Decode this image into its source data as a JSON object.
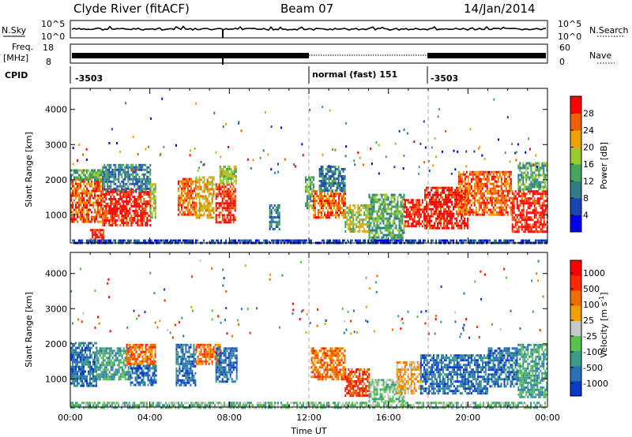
{
  "header": {
    "station": "Clyde River (fitACF)",
    "beam": "Beam 07",
    "date": "14/Jan/2014"
  },
  "panels": {
    "nsky": {
      "label": "N.Sky",
      "right_label": "N.Search",
      "ticks": [
        "10^5",
        "10^0"
      ],
      "right_ticks": [
        "10^5",
        "10^0"
      ]
    },
    "freq": {
      "label_line1": "Freq.",
      "label_line2": "[MHz]",
      "ticks": [
        "18",
        "8"
      ],
      "right_label": "Nave",
      "right_ticks": [
        "60",
        "0"
      ]
    },
    "cpid": {
      "label": "CPID",
      "segments": [
        {
          "start_ut": 0.0,
          "text": "-3503"
        },
        {
          "start_ut": 12.0,
          "text": "normal (fast) 151"
        },
        {
          "start_ut": 18.0,
          "text": "-3503"
        }
      ]
    }
  },
  "chart_data": [
    {
      "type": "heatmap",
      "name": "power",
      "ylabel": "Slant Range [km]",
      "xlabel": "Time UT",
      "xlim": [
        0,
        24
      ],
      "ylim": [
        200,
        4600
      ],
      "xticks": [
        "00:00",
        "04:00",
        "08:00",
        "12:00",
        "16:00",
        "20:00",
        "00:00"
      ],
      "yticks": [
        1000,
        2000,
        3000,
        4000
      ],
      "colorbar": {
        "label": "Power [dB]",
        "ticks": [
          "28",
          "24",
          "20",
          "16",
          "12",
          "8",
          "4"
        ],
        "colors": [
          "#0000ee",
          "#1844b4",
          "#2f7c8a",
          "#46a45c",
          "#9acb2c",
          "#f0a000",
          "#f06000",
          "#ff0000"
        ]
      },
      "dashed_lines_ut": [
        12,
        18
      ],
      "regions": [
        {
          "t": [
            0.0,
            1.6
          ],
          "r": [
            800,
            2050
          ],
          "level": 6
        },
        {
          "t": [
            0.0,
            1.6
          ],
          "r": [
            2000,
            2300
          ],
          "level": 3
        },
        {
          "t": [
            1.6,
            4.0
          ],
          "r": [
            700,
            1750
          ],
          "level": 7
        },
        {
          "t": [
            1.6,
            4.0
          ],
          "r": [
            1700,
            2450
          ],
          "level": 2
        },
        {
          "t": [
            1.0,
            1.7
          ],
          "r": [
            250,
            600
          ],
          "level": 7
        },
        {
          "t": [
            4.0,
            4.3
          ],
          "r": [
            900,
            1900
          ],
          "level": 4
        },
        {
          "t": [
            5.4,
            6.3
          ],
          "r": [
            1000,
            2050
          ],
          "level": 6
        },
        {
          "t": [
            6.3,
            7.2
          ],
          "r": [
            900,
            2100
          ],
          "level": 5
        },
        {
          "t": [
            7.3,
            8.3
          ],
          "r": [
            800,
            1900
          ],
          "level": 7
        },
        {
          "t": [
            7.5,
            8.3
          ],
          "r": [
            1900,
            2400
          ],
          "level": 4
        },
        {
          "t": [
            10.0,
            10.5
          ],
          "r": [
            600,
            1300
          ],
          "level": 2
        },
        {
          "t": [
            11.8,
            12.2
          ],
          "r": [
            1200,
            2100
          ],
          "level": 3
        },
        {
          "t": [
            12.2,
            13.8
          ],
          "r": [
            900,
            1700
          ],
          "level": 6
        },
        {
          "t": [
            12.5,
            13.8
          ],
          "r": [
            1700,
            2400
          ],
          "level": 2
        },
        {
          "t": [
            13.8,
            15.0
          ],
          "r": [
            500,
            1300
          ],
          "level": 4
        },
        {
          "t": [
            15.0,
            16.8
          ],
          "r": [
            300,
            1600
          ],
          "level": 3
        },
        {
          "t": [
            16.8,
            17.8
          ],
          "r": [
            650,
            1450
          ],
          "level": 7
        },
        {
          "t": [
            17.8,
            20.0
          ],
          "r": [
            600,
            1800
          ],
          "level": 7
        },
        {
          "t": [
            19.5,
            22.2
          ],
          "r": [
            1000,
            2250
          ],
          "level": 6
        },
        {
          "t": [
            22.2,
            24.0
          ],
          "r": [
            500,
            1700
          ],
          "level": 7
        },
        {
          "t": [
            22.5,
            24.0
          ],
          "r": [
            1700,
            2500
          ],
          "level": 3
        },
        {
          "t": [
            0.0,
            24.0
          ],
          "r": [
            200,
            300
          ],
          "level": 1
        }
      ]
    },
    {
      "type": "heatmap",
      "name": "velocity",
      "ylabel": "Slant Range [km]",
      "xlabel": "Time UT",
      "xlim": [
        0,
        24
      ],
      "ylim": [
        200,
        4600
      ],
      "xticks": [
        "00:00",
        "04:00",
        "08:00",
        "12:00",
        "16:00",
        "20:00",
        "00:00"
      ],
      "yticks": [
        1000,
        2000,
        3000,
        4000
      ],
      "colorbar": {
        "label": "Velocity [m s^-1]",
        "ticks": [
          "1000",
          "500",
          "100",
          "25",
          "-25",
          "-100",
          "-500",
          "-1000"
        ],
        "colors": [
          "#0a3ac8",
          "#2a72b4",
          "#3c9a88",
          "#58c24c",
          "#c8c8c8",
          "#f0a000",
          "#f06e00",
          "#ff2a00",
          "#ff0000"
        ]
      },
      "dashed_lines_ut": [
        12,
        18
      ],
      "regions": [
        {
          "t": [
            0.0,
            1.3
          ],
          "r": [
            800,
            2050
          ],
          "level": 1
        },
        {
          "t": [
            1.3,
            3.0
          ],
          "r": [
            1000,
            1900
          ],
          "level": 2
        },
        {
          "t": [
            2.8,
            4.3
          ],
          "r": [
            1400,
            2000
          ],
          "level": 6
        },
        {
          "t": [
            3.0,
            4.3
          ],
          "r": [
            800,
            1400
          ],
          "level": 1
        },
        {
          "t": [
            5.3,
            6.3
          ],
          "r": [
            800,
            2000
          ],
          "level": 1
        },
        {
          "t": [
            6.3,
            7.5
          ],
          "r": [
            1400,
            2000
          ],
          "level": 6
        },
        {
          "t": [
            7.3,
            8.4
          ],
          "r": [
            900,
            1900
          ],
          "level": 1
        },
        {
          "t": [
            12.1,
            13.8
          ],
          "r": [
            1000,
            1900
          ],
          "level": 6
        },
        {
          "t": [
            13.8,
            15.0
          ],
          "r": [
            500,
            1300
          ],
          "level": 7
        },
        {
          "t": [
            15.0,
            16.8
          ],
          "r": [
            350,
            1000
          ],
          "level": 3
        },
        {
          "t": [
            16.4,
            17.6
          ],
          "r": [
            600,
            1500
          ],
          "level": 5
        },
        {
          "t": [
            17.6,
            21.0
          ],
          "r": [
            600,
            1700
          ],
          "level": 1
        },
        {
          "t": [
            21.0,
            22.5
          ],
          "r": [
            800,
            1900
          ],
          "level": 1
        },
        {
          "t": [
            22.5,
            24.0
          ],
          "r": [
            500,
            2000
          ],
          "level": 2
        },
        {
          "t": [
            0.0,
            24.0
          ],
          "r": [
            200,
            350
          ],
          "level": 3
        }
      ]
    }
  ]
}
